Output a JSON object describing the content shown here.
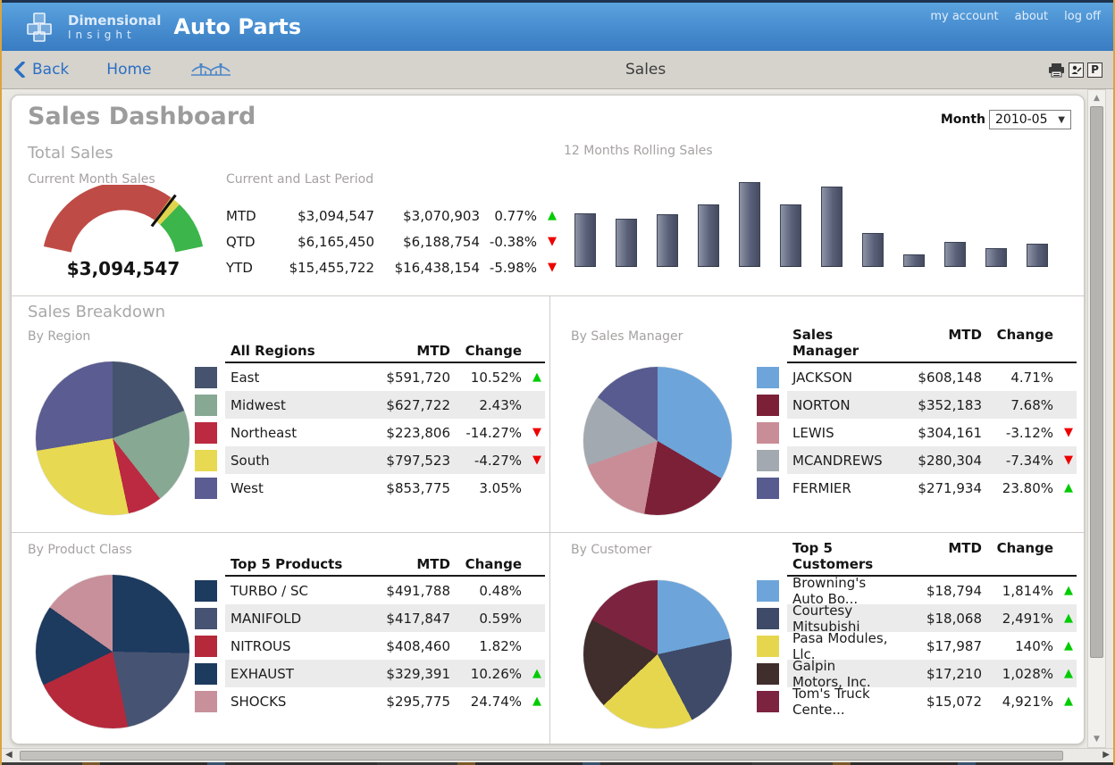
{
  "header": {
    "logo_line1": "Dimensional",
    "logo_line2": "Insight",
    "app_title": "Auto Parts",
    "links": {
      "account": "my account",
      "about": "about",
      "logoff": "log off"
    }
  },
  "nav": {
    "back_label": "Back",
    "home_label": "Home",
    "page_title": "Sales",
    "p_icon_label": "P"
  },
  "dashboard": {
    "title": "Sales Dashboard",
    "month_label": "Month",
    "month_value": "2010-05",
    "total_sales": {
      "section_title": "Total Sales",
      "gauge_label": "Current Month Sales",
      "gauge_value": "$3,094,547",
      "period_label": "Current and Last Period",
      "period_rows": [
        {
          "label": "MTD",
          "current": "$3,094,547",
          "last": "$3,070,903",
          "change": "0.77%",
          "dir": "up"
        },
        {
          "label": "QTD",
          "current": "$6,165,450",
          "last": "$6,188,754",
          "change": "-0.38%",
          "dir": "down"
        },
        {
          "label": "YTD",
          "current": "$15,455,722",
          "last": "$16,438,154",
          "change": "-5.98%",
          "dir": "down"
        }
      ],
      "rolling_title": "12 Months Rolling Sales"
    },
    "breakdown": {
      "section_title": "Sales Breakdown",
      "quadrants": [
        {
          "label": "By Region",
          "table_header": {
            "name": "All Regions",
            "mtd": "MTD",
            "change": "Change"
          },
          "rows": [
            {
              "name": "East",
              "mtd": "$591,720",
              "change": "10.52%",
              "dir": "up",
              "color": "#45536e",
              "value": 591720
            },
            {
              "name": "Midwest",
              "mtd": "$627,722",
              "change": "2.43%",
              "dir": "",
              "color": "#87a893",
              "value": 627722
            },
            {
              "name": "Northeast",
              "mtd": "$223,806",
              "change": "-14.27%",
              "dir": "down",
              "color": "#bb2a40",
              "value": 223806
            },
            {
              "name": "South",
              "mtd": "$797,523",
              "change": "-4.27%",
              "dir": "down",
              "color": "#e7d951",
              "value": 797523
            },
            {
              "name": "West",
              "mtd": "$853,775",
              "change": "3.05%",
              "dir": "",
              "color": "#5a5c92",
              "value": 853775
            }
          ]
        },
        {
          "label": "By Sales Manager",
          "table_header": {
            "name": "Sales Manager",
            "mtd": "MTD",
            "change": "Change"
          },
          "rows": [
            {
              "name": "JACKSON",
              "mtd": "$608,148",
              "change": "4.71%",
              "dir": "",
              "color": "#6da5da",
              "value": 608148
            },
            {
              "name": "NORTON",
              "mtd": "$352,183",
              "change": "7.68%",
              "dir": "",
              "color": "#7c2038",
              "value": 352183
            },
            {
              "name": "LEWIS",
              "mtd": "$304,161",
              "change": "-3.12%",
              "dir": "down",
              "color": "#c98d97",
              "value": 304161
            },
            {
              "name": "MCANDREWS",
              "mtd": "$280,304",
              "change": "-7.34%",
              "dir": "down",
              "color": "#a2a9b0",
              "value": 280304
            },
            {
              "name": "FERMIER",
              "mtd": "$271,934",
              "change": "23.80%",
              "dir": "up",
              "color": "#575b90",
              "value": 271934
            }
          ]
        },
        {
          "label": "By Product Class",
          "table_header": {
            "name": "Top 5 Products",
            "mtd": "MTD",
            "change": "Change"
          },
          "rows": [
            {
              "name": "TURBO / SC",
              "mtd": "$491,788",
              "change": "0.48%",
              "dir": "",
              "color": "#1d3a5f",
              "value": 491788
            },
            {
              "name": "MANIFOLD",
              "mtd": "$417,847",
              "change": "0.59%",
              "dir": "",
              "color": "#465372",
              "value": 417847
            },
            {
              "name": "NITROUS",
              "mtd": "$408,460",
              "change": "1.82%",
              "dir": "",
              "color": "#b5293b",
              "value": 408460
            },
            {
              "name": "EXHAUST",
              "mtd": "$329,391",
              "change": "10.26%",
              "dir": "up",
              "color": "#1d3a5f",
              "value": 329391
            },
            {
              "name": "SHOCKS",
              "mtd": "$295,775",
              "change": "24.74%",
              "dir": "up",
              "color": "#c8909a",
              "value": 295775
            }
          ]
        },
        {
          "label": "By Customer",
          "table_header": {
            "name": "Top 5 Customers",
            "mtd": "MTD",
            "change": "Change"
          },
          "rows": [
            {
              "name": "Browning's Auto Bo...",
              "mtd": "$18,794",
              "change": "1,814%",
              "dir": "up",
              "color": "#6da5da",
              "value": 18794
            },
            {
              "name": "Courtesy Mitsubishi",
              "mtd": "$18,068",
              "change": "2,491%",
              "dir": "up",
              "color": "#3e4a68",
              "value": 18068
            },
            {
              "name": "Pasa Modules, Llc.",
              "mtd": "$17,987",
              "change": "140%",
              "dir": "up",
              "color": "#e6d64e",
              "value": 17987
            },
            {
              "name": "Galpin Motors, Inc.",
              "mtd": "$17,210",
              "change": "1,028%",
              "dir": "up",
              "color": "#402e2c",
              "value": 17210
            },
            {
              "name": "Tom's Truck Cente...",
              "mtd": "$15,072",
              "change": "4,921%",
              "dir": "up",
              "color": "#7c2340",
              "value": 15072
            }
          ]
        }
      ]
    }
  },
  "chart_data": [
    {
      "type": "gauge",
      "title": "Current Month Sales",
      "value": 3094547,
      "value_label": "$3,094,547",
      "segments": [
        {
          "color": "#bf4b46",
          "fraction": 0.73
        },
        {
          "color": "#e0d44e",
          "fraction": 0.05
        },
        {
          "color": "#3cb54a",
          "fraction": 0.22
        }
      ],
      "needle_fraction": 0.74
    },
    {
      "type": "bar",
      "title": "12 Months Rolling Sales",
      "x_labels_shown": false,
      "axis_shown": false,
      "values_relative_pct": [
        63,
        57,
        62,
        74,
        100,
        74,
        95,
        40,
        15,
        29,
        22,
        27
      ]
    },
    {
      "type": "pie",
      "title": "By Region",
      "labels": [
        "East",
        "Midwest",
        "Northeast",
        "South",
        "West"
      ],
      "values": [
        591720,
        627722,
        223806,
        797523,
        853775
      ]
    },
    {
      "type": "pie",
      "title": "By Sales Manager",
      "labels": [
        "JACKSON",
        "NORTON",
        "LEWIS",
        "MCANDREWS",
        "FERMIER"
      ],
      "values": [
        608148,
        352183,
        304161,
        280304,
        271934
      ]
    },
    {
      "type": "pie",
      "title": "By Product Class",
      "labels": [
        "TURBO / SC",
        "MANIFOLD",
        "NITROUS",
        "EXHAUST",
        "SHOCKS"
      ],
      "values": [
        491788,
        417847,
        408460,
        329391,
        295775
      ]
    },
    {
      "type": "pie",
      "title": "By Customer",
      "labels": [
        "Browning's Auto Bo...",
        "Courtesy Mitsubishi",
        "Pasa Modules, Llc.",
        "Galpin Motors, Inc.",
        "Tom's Truck Cente..."
      ],
      "values": [
        18794,
        18068,
        17987,
        17210,
        15072
      ]
    }
  ]
}
